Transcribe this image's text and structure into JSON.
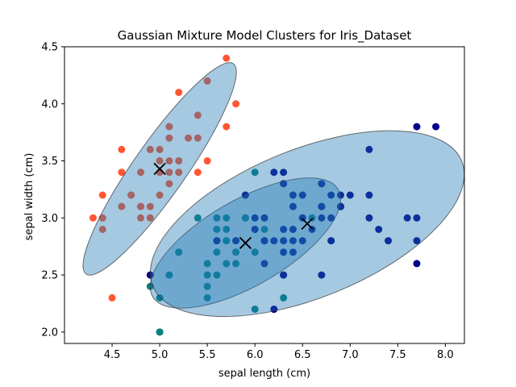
{
  "chart_data": {
    "type": "scatter",
    "title": "Gaussian Mixture Model Clusters for Iris_Dataset",
    "xlabel": "sepal length (cm)",
    "ylabel": "sepal width (cm)",
    "xlim": [
      4.0,
      8.2
    ],
    "ylim": [
      1.9,
      4.5
    ],
    "grid": false,
    "x_ticks": [
      4.5,
      5.0,
      5.5,
      6.0,
      6.5,
      7.0,
      7.5,
      8.0
    ],
    "x_tick_labels": [
      "4.5",
      "5.0",
      "5.5",
      "6.0",
      "6.5",
      "7.0",
      "7.5",
      "8.0"
    ],
    "y_ticks": [
      2.0,
      2.5,
      3.0,
      3.5,
      4.0,
      4.5
    ],
    "y_tick_labels": [
      "2.0",
      "2.5",
      "3.0",
      "3.5",
      "4.0",
      "4.5"
    ],
    "ellipse_color": "#1f77b4",
    "ellipse_edge_color": "#333333",
    "center_color": "#000000",
    "clusters": [
      {
        "color": "#ff5733",
        "center": [
          5.0,
          3.43
        ],
        "ellipse": {
          "center": [
            5.0,
            3.43
          ],
          "width": 0.55,
          "height": 2.25,
          "angle": -35
        },
        "points": [
          [
            5.1,
            3.5
          ],
          [
            4.9,
            3.0
          ],
          [
            4.7,
            3.2
          ],
          [
            4.6,
            3.1
          ],
          [
            5.0,
            3.6
          ],
          [
            5.4,
            3.9
          ],
          [
            4.6,
            3.4
          ],
          [
            5.0,
            3.4
          ],
          [
            4.4,
            2.9
          ],
          [
            4.9,
            3.1
          ],
          [
            5.4,
            3.7
          ],
          [
            4.8,
            3.4
          ],
          [
            4.8,
            3.0
          ],
          [
            4.3,
            3.0
          ],
          [
            5.8,
            4.0
          ],
          [
            5.7,
            4.4
          ],
          [
            5.1,
            3.8
          ],
          [
            5.7,
            3.8
          ],
          [
            5.2,
            3.4
          ],
          [
            5.0,
            3.2
          ],
          [
            5.5,
            3.5
          ],
          [
            4.4,
            3.2
          ],
          [
            4.6,
            3.6
          ],
          [
            4.5,
            2.3
          ],
          [
            5.6,
            3.0
          ],
          [
            5.0,
            3.5
          ],
          [
            5.0,
            2.0
          ],
          [
            5.5,
            4.2
          ],
          [
            5.2,
            4.1
          ],
          [
            5.1,
            3.7
          ],
          [
            4.8,
            3.1
          ],
          [
            4.9,
            3.6
          ],
          [
            5.1,
            3.3
          ],
          [
            4.7,
            3.2
          ],
          [
            4.8,
            3.1
          ],
          [
            5.4,
            3.4
          ],
          [
            5.2,
            3.5
          ],
          [
            5.3,
            3.7
          ],
          [
            4.4,
            3.0
          ],
          [
            5.1,
            3.4
          ]
        ]
      },
      {
        "color": "#008080",
        "center": [
          5.9,
          2.78
        ],
        "ellipse": {
          "center": [
            5.9,
            2.78
          ],
          "width": 2.25,
          "height": 0.75,
          "angle": 30
        },
        "points": [
          [
            5.5,
            2.3
          ],
          [
            5.7,
            2.8
          ],
          [
            4.9,
            2.4
          ],
          [
            5.2,
            2.7
          ],
          [
            5.0,
            2.0
          ],
          [
            5.9,
            3.0
          ],
          [
            6.0,
            2.2
          ],
          [
            5.6,
            2.9
          ],
          [
            5.8,
            2.7
          ],
          [
            5.6,
            2.5
          ],
          [
            5.9,
            3.2
          ],
          [
            6.1,
            2.8
          ],
          [
            6.3,
            2.5
          ],
          [
            6.0,
            2.9
          ],
          [
            5.7,
            2.6
          ],
          [
            5.5,
            2.4
          ],
          [
            5.8,
            2.7
          ],
          [
            6.0,
            2.7
          ],
          [
            5.4,
            3.0
          ],
          [
            6.0,
            3.4
          ],
          [
            5.6,
            3.0
          ],
          [
            5.5,
            2.5
          ],
          [
            5.5,
            2.6
          ],
          [
            5.8,
            2.6
          ],
          [
            5.0,
            2.3
          ],
          [
            5.6,
            2.7
          ],
          [
            5.7,
            3.0
          ],
          [
            5.7,
            2.9
          ],
          [
            5.1,
            2.5
          ],
          [
            5.7,
            2.8
          ],
          [
            5.8,
            2.8
          ],
          [
            6.3,
            2.3
          ],
          [
            6.2,
            2.2
          ],
          [
            6.5,
            3.2
          ],
          [
            5.6,
            2.8
          ],
          [
            6.1,
            3.0
          ],
          [
            6.4,
            3.2
          ],
          [
            6.3,
            3.3
          ],
          [
            5.2,
            2.7
          ],
          [
            6.1,
            2.9
          ],
          [
            5.9,
            3.0
          ],
          [
            6.8,
            2.8
          ],
          [
            6.9,
            3.1
          ],
          [
            6.6,
            3.0
          ],
          [
            6.7,
            3.1
          ]
        ]
      },
      {
        "color": "#00008b",
        "center": [
          6.55,
          2.95
        ],
        "ellipse": {
          "center": [
            6.55,
            2.95
          ],
          "width": 3.5,
          "height": 1.3,
          "angle": 22
        },
        "points": [
          [
            7.0,
            3.2
          ],
          [
            6.4,
            3.2
          ],
          [
            6.9,
            3.1
          ],
          [
            6.5,
            2.8
          ],
          [
            6.3,
            3.3
          ],
          [
            6.6,
            2.9
          ],
          [
            6.7,
            3.1
          ],
          [
            6.2,
            2.2
          ],
          [
            5.9,
            3.2
          ],
          [
            6.1,
            2.8
          ],
          [
            6.3,
            2.5
          ],
          [
            6.1,
            2.8
          ],
          [
            6.4,
            2.9
          ],
          [
            6.8,
            2.8
          ],
          [
            6.7,
            3.0
          ],
          [
            6.0,
            2.9
          ],
          [
            6.7,
            3.3
          ],
          [
            6.3,
            2.9
          ],
          [
            6.5,
            3.0
          ],
          [
            7.6,
            3.0
          ],
          [
            4.9,
            2.5
          ],
          [
            7.3,
            2.9
          ],
          [
            6.7,
            2.5
          ],
          [
            7.2,
            3.6
          ],
          [
            6.5,
            3.2
          ],
          [
            6.4,
            2.7
          ],
          [
            6.8,
            3.0
          ],
          [
            5.8,
            2.8
          ],
          [
            7.7,
            3.8
          ],
          [
            7.7,
            2.6
          ],
          [
            6.9,
            3.2
          ],
          [
            5.6,
            2.8
          ],
          [
            7.7,
            2.8
          ],
          [
            6.3,
            2.7
          ],
          [
            6.7,
            3.3
          ],
          [
            7.2,
            3.2
          ],
          [
            6.2,
            2.8
          ],
          [
            6.4,
            2.8
          ],
          [
            7.2,
            3.0
          ],
          [
            7.4,
            2.8
          ],
          [
            7.9,
            3.8
          ],
          [
            6.3,
            2.8
          ],
          [
            6.1,
            2.6
          ],
          [
            7.7,
            3.0
          ],
          [
            6.3,
            3.4
          ],
          [
            6.0,
            3.0
          ],
          [
            6.9,
            3.1
          ],
          [
            6.7,
            3.1
          ],
          [
            6.9,
            3.1
          ],
          [
            6.8,
            3.2
          ],
          [
            6.5,
            3.0
          ],
          [
            6.2,
            3.4
          ],
          [
            6.1,
            3.0
          ],
          [
            6.4,
            3.1
          ]
        ]
      }
    ]
  }
}
